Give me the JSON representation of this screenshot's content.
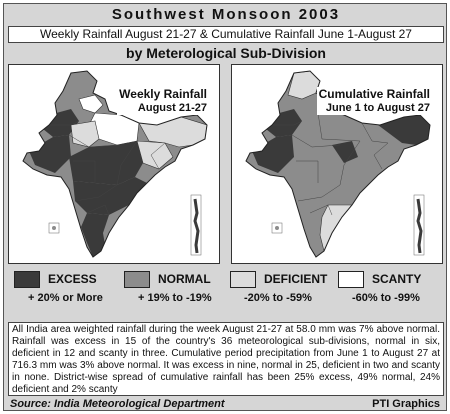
{
  "header": {
    "title": "Southwest Monsoon 2003",
    "subtitle": "Weekly Rainfall August 21-27  &  Cumulative Rainfall June 1-August 27",
    "subtitle2": "by Meterological Sub-Division"
  },
  "maps": [
    {
      "title": "Weekly Rainfall",
      "subtitle": "August 21-27"
    },
    {
      "title": "Cumulative Rainfall",
      "subtitle": "June 1 to August 27"
    }
  ],
  "legend": [
    {
      "name": "EXCESS",
      "range": "+ 20% or More",
      "color": "#3a3a3a"
    },
    {
      "name": "NORMAL",
      "range": "+ 19% to -19%",
      "color": "#8c8c8c"
    },
    {
      "name": "DEFICIENT",
      "range": "-20% to -59%",
      "color": "#dcdcdc"
    },
    {
      "name": "SCANTY",
      "range": "-60% to -99%",
      "color": "#ffffff"
    }
  ],
  "description": "All India area weighted rainfall during the week August 21-27 at 58.0 mm was 7% above normal. Rainfall was excess in 15 of the country's 36 meteorological sub-divisions, normal in six, deficient in 12 and scanty in three. Cumulative period precipitation from June 1 to August 27 at 716.3 mm was 3% above normal. It was excess in nine, normal in 25, deficient in two and scanty in none. District-wise spread of cumulative rainfall has been 25% excess, 49% normal, 24% deficient and 2% scanty",
  "footer": {
    "source": "Source: India Meteorological Department",
    "credit": "PTI Graphics"
  },
  "colors": {
    "excess": "#3a3a3a",
    "normal": "#8c8c8c",
    "deficient": "#dcdcdc",
    "scanty": "#ffffff",
    "background": "#d6d6d6"
  }
}
